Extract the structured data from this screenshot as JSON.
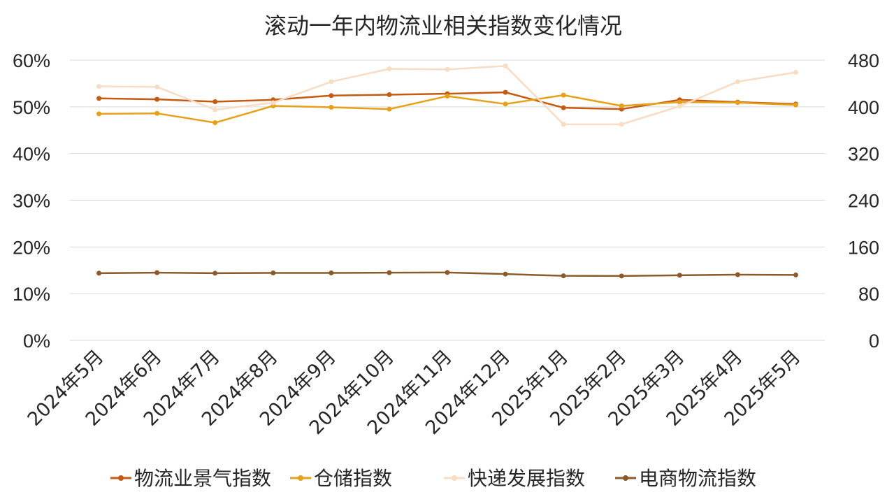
{
  "chart_data": {
    "type": "line",
    "title": "滚动一年内物流业相关指数变化情况",
    "categories": [
      "2024年5月",
      "2024年6月",
      "2024年7月",
      "2024年8月",
      "2024年9月",
      "2024年10月",
      "2024年11月",
      "2024年12月",
      "2025年1月",
      "2025年2月",
      "2025年3月",
      "2025年4月",
      "2025年5月"
    ],
    "y_left": {
      "ticks": [
        "0%",
        "10%",
        "20%",
        "30%",
        "40%",
        "50%",
        "60%"
      ],
      "ylim": [
        0,
        60
      ]
    },
    "y_right": {
      "ticks": [
        "0",
        "80",
        "160",
        "240",
        "320",
        "400",
        "480"
      ],
      "ylim": [
        0,
        480
      ]
    },
    "grid": true,
    "legend_position": "bottom",
    "series": [
      {
        "name": "物流业景气指数",
        "axis": "left",
        "color": "#c55a11",
        "values": [
          51.8,
          51.6,
          51.1,
          51.5,
          52.4,
          52.6,
          52.8,
          53.1,
          49.8,
          49.5,
          51.5,
          51.0,
          50.6
        ]
      },
      {
        "name": "仓储指数",
        "axis": "left",
        "color": "#e6a118",
        "values": [
          48.5,
          48.6,
          46.6,
          50.2,
          49.9,
          49.5,
          52.3,
          50.6,
          52.5,
          50.2,
          51.0,
          50.9,
          50.4
        ]
      },
      {
        "name": "快递发展指数",
        "axis": "right",
        "color": "#f8dcc4",
        "values": [
          435,
          434,
          395,
          407,
          443,
          465,
          464,
          470,
          370,
          370,
          401,
          443,
          459
        ]
      },
      {
        "name": "电商物流指数",
        "axis": "right",
        "color": "#8b5a2b",
        "values": [
          115,
          116,
          115,
          115.5,
          115.5,
          116,
          116.3,
          113.5,
          110.5,
          110.3,
          111.5,
          112.5,
          112
        ]
      }
    ]
  }
}
